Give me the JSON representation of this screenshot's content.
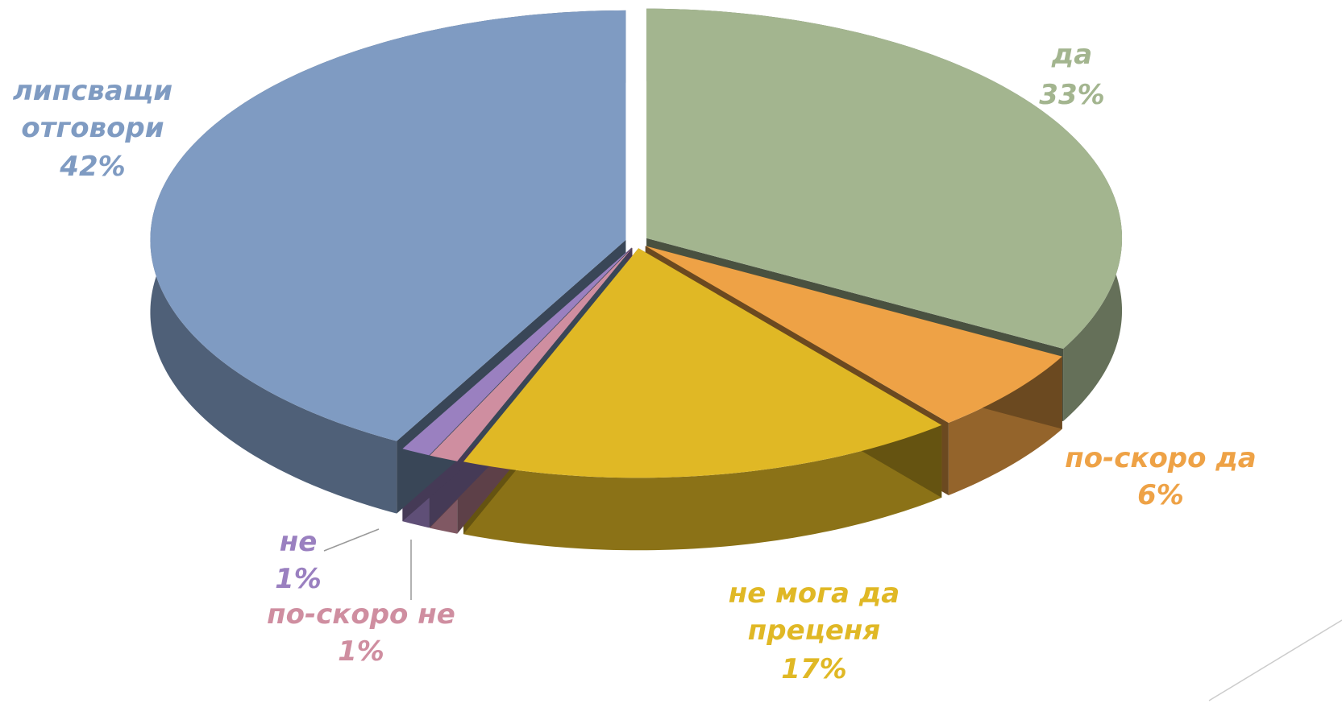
{
  "chart_data": {
    "type": "pie",
    "categories": [
      "да",
      "по-скоро да",
      "не мога да преценя",
      "по-скоро не",
      "не",
      "липсващи отговори"
    ],
    "values": [
      33,
      6,
      17,
      1,
      1,
      42
    ],
    "value_labels": [
      "33%",
      "6%",
      "17%",
      "1%",
      "1%",
      "42%"
    ],
    "colors": [
      "#a3b58f",
      "#eea246",
      "#e0b825",
      "#cf8ea0",
      "#9a80c0",
      "#7f9bc2"
    ],
    "label_colors": [
      "#a3b58f",
      "#eea246",
      "#e0b825",
      "#cf8ea0",
      "#9a80c0",
      "#7f9bc2"
    ]
  }
}
